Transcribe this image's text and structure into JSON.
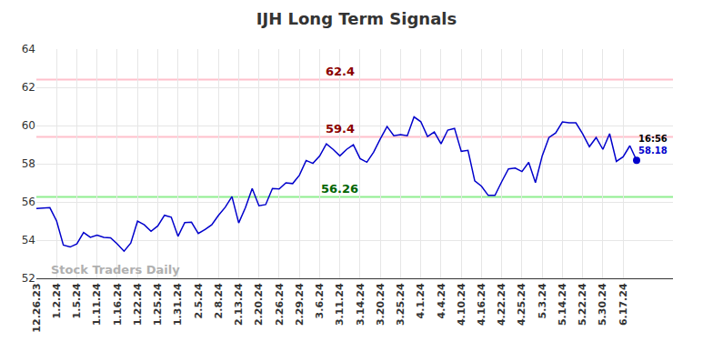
{
  "chart_data": {
    "type": "line",
    "title": "IJH Long Term Signals",
    "color": "#0000cc",
    "grid": true,
    "categories": [
      "12.26.23",
      null,
      null,
      "1.2.24",
      null,
      null,
      "1.5.24",
      null,
      null,
      "1.11.24",
      null,
      null,
      "1.16.24",
      null,
      null,
      "1.22.24",
      null,
      null,
      "1.25.24",
      null,
      null,
      "1.31.24",
      null,
      null,
      "2.5.24",
      null,
      null,
      "2.8.24",
      null,
      null,
      "2.13.24",
      null,
      null,
      "2.20.24",
      null,
      null,
      "2.26.24",
      null,
      null,
      "2.29.24",
      null,
      null,
      "3.6.24",
      null,
      null,
      "3.11.24",
      null,
      null,
      "3.14.24",
      null,
      null,
      "3.20.24",
      null,
      null,
      "3.25.24",
      null,
      null,
      "4.1.24",
      null,
      null,
      "4.4.24",
      null,
      null,
      "4.10.24",
      null,
      null,
      "4.16.24",
      null,
      null,
      "4.22.24",
      null,
      null,
      "4.25.24",
      null,
      null,
      "5.3.24",
      null,
      null,
      "5.14.24",
      null,
      null,
      "5.22.24",
      null,
      null,
      "5.30.24",
      null,
      null,
      "6.17.24",
      null,
      null
    ],
    "values": [
      55.66,
      55.68,
      55.7,
      55.0,
      53.74,
      53.64,
      53.8,
      54.4,
      54.15,
      54.26,
      54.14,
      54.12,
      53.8,
      53.42,
      53.85,
      54.99,
      54.8,
      54.46,
      54.74,
      55.3,
      55.2,
      54.2,
      54.92,
      54.94,
      54.35,
      54.55,
      54.8,
      55.3,
      55.72,
      56.28,
      54.9,
      55.7,
      56.7,
      55.8,
      55.86,
      56.7,
      56.68,
      57.0,
      56.96,
      57.4,
      58.17,
      58.02,
      58.4,
      59.04,
      58.75,
      58.41,
      58.75,
      58.99,
      58.27,
      58.08,
      58.6,
      59.3,
      59.95,
      59.47,
      59.52,
      59.47,
      60.45,
      60.2,
      59.42,
      59.66,
      59.04,
      59.76,
      59.85,
      58.65,
      58.7,
      57.1,
      56.82,
      56.34,
      56.34,
      57.06,
      57.73,
      57.77,
      57.59,
      58.07,
      57.01,
      58.41,
      59.37,
      59.61,
      60.19,
      60.14,
      60.14,
      59.57,
      58.89,
      59.37,
      58.75,
      59.57,
      58.12,
      58.36,
      58.94,
      58.18
    ],
    "ylim": [
      52,
      64
    ],
    "yticks": [
      52,
      54,
      56,
      58,
      60,
      62,
      64
    ],
    "levels": [
      {
        "value": 62.4,
        "color": "#ffc0cb",
        "label_color": "#8b0000"
      },
      {
        "value": 59.4,
        "color": "#ffc0cb",
        "label_color": "#8b0000"
      },
      {
        "value": 56.26,
        "color": "#90ee90",
        "label_color": "#006400"
      }
    ],
    "last_point": {
      "time": "16:56",
      "marker": "circle"
    },
    "watermark": "Stock Traders Daily"
  }
}
